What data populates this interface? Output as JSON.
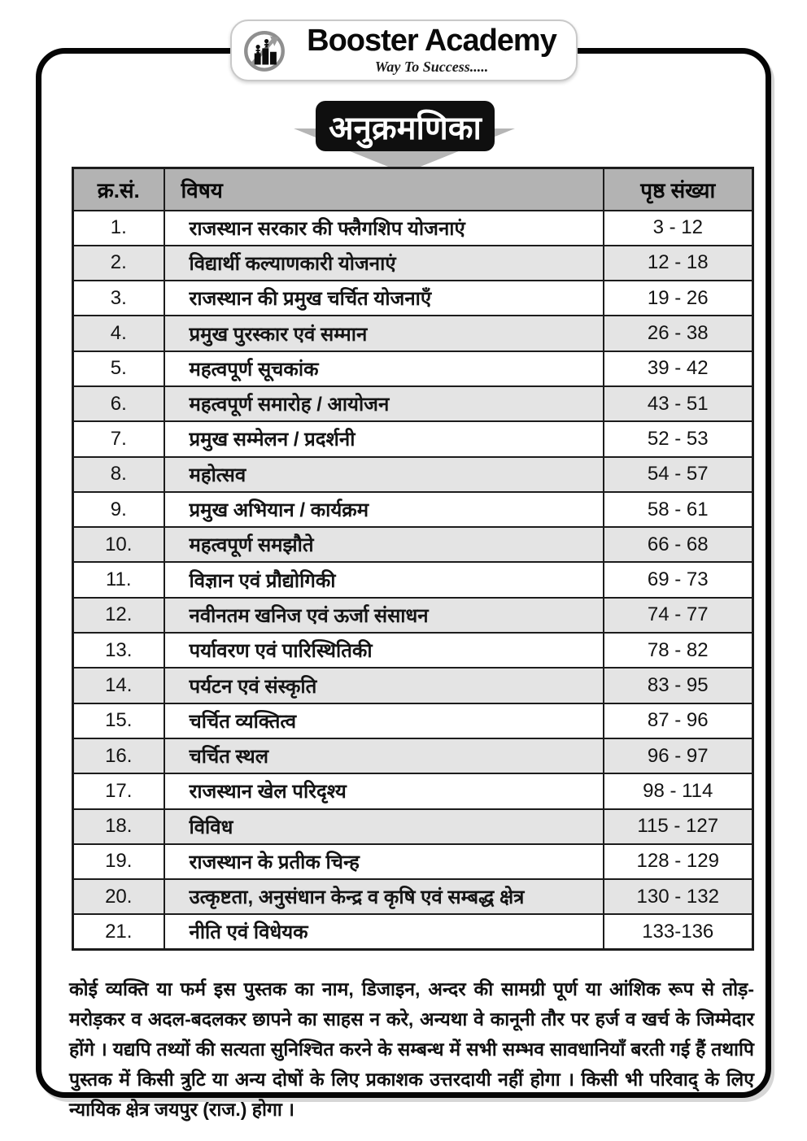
{
  "header": {
    "brand": "Booster Academy",
    "tagline": "Way To Success.....",
    "logo_icon": "climbers-growth-arrow-icon"
  },
  "title_banner": {
    "title": "अनुक्रमणिका"
  },
  "table": {
    "columns": [
      "क्र.सं.",
      "विषय",
      "पृष्ठ संख्या"
    ],
    "rows": [
      {
        "sno": "1.",
        "subject": "राजस्थान सरकार की फ्लैगशिप योजनाएं",
        "pages": "3 - 12"
      },
      {
        "sno": "2.",
        "subject": "विद्यार्थी कल्याणकारी योजनाएं",
        "pages": "12 - 18"
      },
      {
        "sno": "3.",
        "subject": "राजस्थान की प्रमुख चर्चित योजनाएँ",
        "pages": "19 - 26"
      },
      {
        "sno": "4.",
        "subject": "प्रमुख पुरस्कार एवं सम्मान",
        "pages": "26 - 38"
      },
      {
        "sno": "5.",
        "subject": "महत्वपूर्ण सूचकांक",
        "pages": "39 - 42"
      },
      {
        "sno": "6.",
        "subject": "महत्वपूर्ण समारोह / आयोजन",
        "pages": "43 - 51"
      },
      {
        "sno": "7.",
        "subject": "प्रमुख सम्मेलन / प्रदर्शनी",
        "pages": "52 - 53"
      },
      {
        "sno": "8.",
        "subject": "महोत्सव",
        "pages": "54 - 57"
      },
      {
        "sno": "9.",
        "subject": "प्रमुख अभियान / कार्यक्रम",
        "pages": "58 - 61"
      },
      {
        "sno": "10.",
        "subject": "महत्वपूर्ण समझौते",
        "pages": "66 - 68"
      },
      {
        "sno": "11.",
        "subject": "विज्ञान एवं प्रौद्योगिकी",
        "pages": "69 - 73"
      },
      {
        "sno": "12.",
        "subject": "नवीनतम खनिज एवं ऊर्जा संसाधन",
        "pages": "74 - 77"
      },
      {
        "sno": "13.",
        "subject": "पर्यावरण एवं पारिस्थितिकी",
        "pages": "78 - 82"
      },
      {
        "sno": "14.",
        "subject": "पर्यटन एवं संस्कृति",
        "pages": "83 - 95"
      },
      {
        "sno": "15.",
        "subject": "चर्चित व्यक्तित्व",
        "pages": "87 - 96"
      },
      {
        "sno": "16.",
        "subject": "चर्चित स्थल",
        "pages": "96 - 97"
      },
      {
        "sno": "17.",
        "subject": "राजस्थान खेल परिदृश्य",
        "pages": "98 - 114"
      },
      {
        "sno": "18.",
        "subject": "विविध",
        "pages": "115 - 127"
      },
      {
        "sno": "19.",
        "subject": "राजस्थान के प्रतीक चिन्ह",
        "pages": "128 - 129"
      },
      {
        "sno": "20.",
        "subject": "उत्कृष्टता, अनुसंधान केन्द्र व कृषि एवं सम्बद्ध क्षेत्र",
        "pages": "130 - 132"
      },
      {
        "sno": "21.",
        "subject": "नीति एवं विधेयक",
        "pages": "133-136"
      }
    ]
  },
  "footer": {
    "disclaimer": "कोई व्यक्ति या फर्म इस पुस्तक का नाम, डिजाइन, अन्दर की सामग्री पूर्ण या आंशिक रूप से तोड़-मरोड़कर व अदल-बदलकर छापने का साहस न करे, अन्यथा वे कानूनी तौर पर हर्ज व खर्च के जिम्मेदार होंगे । यद्यपि तथ्यों की सत्यता सुनिश्चित करने के सम्बन्ध में सभी सम्भव सावधानियाँ बरती गई हैं तथापि पुस्तक में किसी त्रुटि या अन्य दोषों के लिए प्रकाशक उत्तरदायी नहीं होगा । किसी भी परिवाद् के लिए न्यायिक क्षेत्र जयपुर (राज.) होगा ।"
  },
  "colors": {
    "banner_bg": "#0f0f0f",
    "banner_text": "#ffffff",
    "table_header_bg": "#b3b3b3",
    "row_alt_bg": "#e4e4e4",
    "table_border": "#1c1c1c",
    "ribbon_gray": "#b5b5b5",
    "frame_black": "#050505"
  }
}
